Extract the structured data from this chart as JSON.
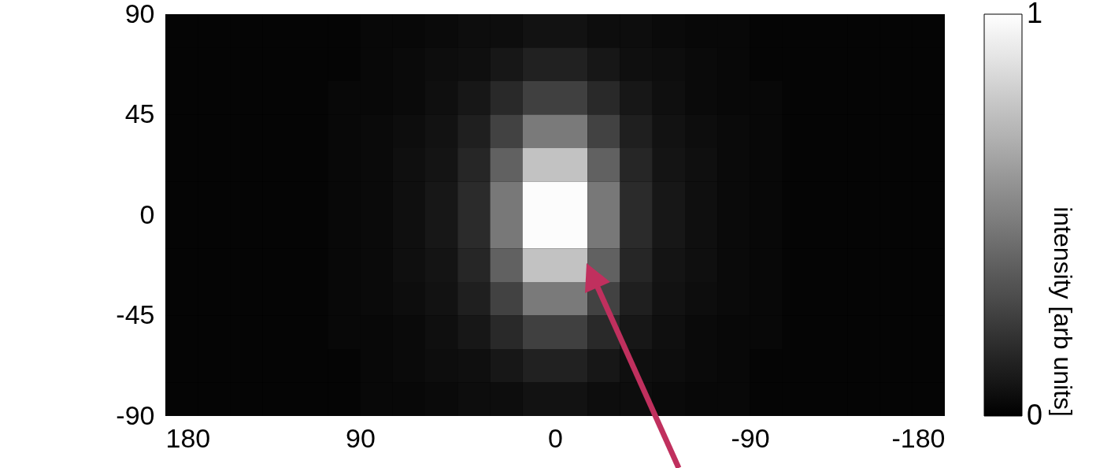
{
  "chart_data": {
    "type": "heatmap",
    "clabel": "intensity [arb units]",
    "xlim": [
      180,
      -180
    ],
    "xticks": [
      180,
      90,
      0,
      -90,
      -180
    ],
    "ylim": [
      -90,
      90
    ],
    "yticks": [
      90,
      45,
      0,
      -45,
      -90
    ],
    "clim": [
      0,
      1
    ],
    "cticks": [
      0,
      1
    ],
    "cells": [
      [
        0.02,
        0.02,
        0.02,
        0.02,
        0.02,
        0.02,
        0.03,
        0.03,
        0.04,
        0.05,
        0.05,
        0.07,
        0.07,
        0.05,
        0.05,
        0.04,
        0.03,
        0.03,
        0.02,
        0.02,
        0.02,
        0.02,
        0.02,
        0.02
      ],
      [
        0.02,
        0.02,
        0.02,
        0.02,
        0.02,
        0.02,
        0.03,
        0.04,
        0.05,
        0.06,
        0.09,
        0.13,
        0.13,
        0.09,
        0.06,
        0.05,
        0.04,
        0.03,
        0.02,
        0.02,
        0.02,
        0.02,
        0.02,
        0.02
      ],
      [
        0.02,
        0.02,
        0.02,
        0.02,
        0.02,
        0.03,
        0.03,
        0.04,
        0.06,
        0.09,
        0.16,
        0.25,
        0.25,
        0.16,
        0.09,
        0.06,
        0.04,
        0.03,
        0.03,
        0.02,
        0.02,
        0.02,
        0.02,
        0.02
      ],
      [
        0.02,
        0.02,
        0.02,
        0.02,
        0.02,
        0.03,
        0.04,
        0.05,
        0.07,
        0.12,
        0.26,
        0.48,
        0.48,
        0.26,
        0.12,
        0.07,
        0.05,
        0.04,
        0.03,
        0.02,
        0.02,
        0.02,
        0.02,
        0.02
      ],
      [
        0.02,
        0.02,
        0.02,
        0.02,
        0.02,
        0.03,
        0.04,
        0.06,
        0.08,
        0.15,
        0.38,
        0.76,
        0.76,
        0.38,
        0.15,
        0.08,
        0.06,
        0.04,
        0.03,
        0.02,
        0.02,
        0.02,
        0.02,
        0.02
      ],
      [
        0.02,
        0.02,
        0.02,
        0.02,
        0.02,
        0.03,
        0.04,
        0.06,
        0.09,
        0.17,
        0.47,
        0.99,
        0.99,
        0.47,
        0.17,
        0.09,
        0.06,
        0.04,
        0.03,
        0.02,
        0.02,
        0.02,
        0.02,
        0.02
      ],
      [
        0.02,
        0.02,
        0.02,
        0.02,
        0.02,
        0.03,
        0.04,
        0.06,
        0.09,
        0.17,
        0.47,
        0.99,
        0.99,
        0.47,
        0.17,
        0.09,
        0.06,
        0.04,
        0.03,
        0.02,
        0.02,
        0.02,
        0.02,
        0.02
      ],
      [
        0.02,
        0.02,
        0.02,
        0.02,
        0.02,
        0.03,
        0.04,
        0.06,
        0.08,
        0.15,
        0.38,
        0.76,
        0.76,
        0.38,
        0.15,
        0.08,
        0.06,
        0.04,
        0.03,
        0.02,
        0.02,
        0.02,
        0.02,
        0.02
      ],
      [
        0.02,
        0.02,
        0.02,
        0.02,
        0.02,
        0.03,
        0.04,
        0.05,
        0.07,
        0.12,
        0.26,
        0.48,
        0.48,
        0.26,
        0.12,
        0.07,
        0.05,
        0.04,
        0.03,
        0.02,
        0.02,
        0.02,
        0.02,
        0.02
      ],
      [
        0.02,
        0.02,
        0.02,
        0.02,
        0.02,
        0.03,
        0.03,
        0.04,
        0.06,
        0.09,
        0.16,
        0.25,
        0.25,
        0.16,
        0.09,
        0.06,
        0.04,
        0.03,
        0.03,
        0.02,
        0.02,
        0.02,
        0.02,
        0.02
      ],
      [
        0.02,
        0.02,
        0.02,
        0.02,
        0.02,
        0.02,
        0.03,
        0.04,
        0.05,
        0.06,
        0.09,
        0.13,
        0.13,
        0.09,
        0.06,
        0.05,
        0.04,
        0.03,
        0.02,
        0.02,
        0.02,
        0.02,
        0.02,
        0.02
      ],
      [
        0.02,
        0.02,
        0.02,
        0.02,
        0.02,
        0.02,
        0.03,
        0.03,
        0.04,
        0.05,
        0.05,
        0.07,
        0.07,
        0.05,
        0.05,
        0.04,
        0.03,
        0.03,
        0.02,
        0.02,
        0.02,
        0.02,
        0.02,
        0.02
      ]
    ]
  }
}
